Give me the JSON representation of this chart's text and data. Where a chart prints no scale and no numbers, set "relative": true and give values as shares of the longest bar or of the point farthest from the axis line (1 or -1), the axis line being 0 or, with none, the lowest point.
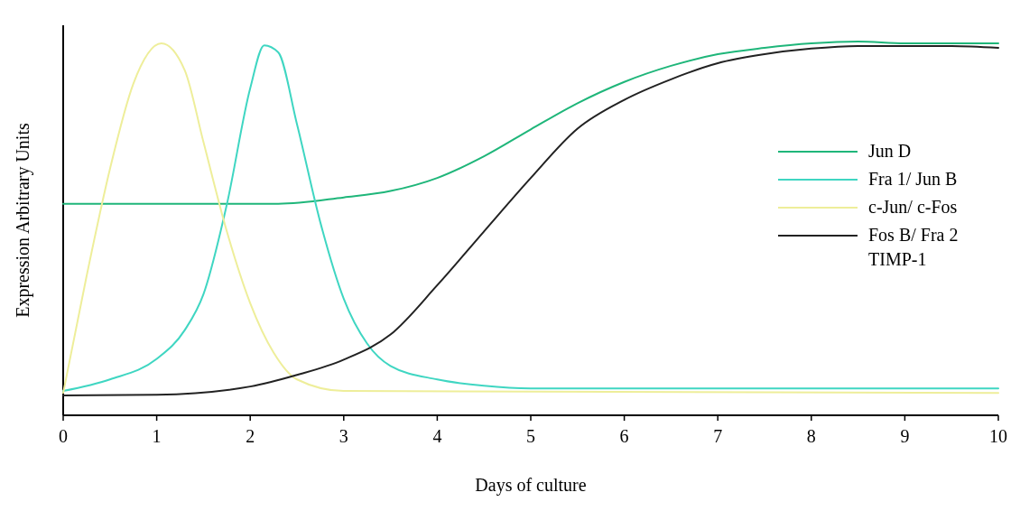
{
  "chart_data": {
    "type": "line",
    "relative": true,
    "xlabel": "Days of  culture",
    "ylabel": "Expression Arbitrary Units",
    "xlim": [
      0,
      10
    ],
    "xticks": [
      0,
      1,
      2,
      3,
      4,
      5,
      6,
      7,
      8,
      9,
      10
    ],
    "legend": "right",
    "grid": false,
    "annotations": [
      "TIMP-1"
    ],
    "series": [
      {
        "name": "Jun D",
        "color": "#1fb67a",
        "x": [
          0,
          1,
          2,
          2.3,
          3,
          3.5,
          4,
          4.5,
          5,
          5.5,
          6,
          6.5,
          7,
          7.5,
          8,
          8.5,
          9,
          10
        ],
        "values": [
          0.566,
          0.566,
          0.566,
          0.566,
          0.583,
          0.6,
          0.635,
          0.693,
          0.765,
          0.835,
          0.892,
          0.935,
          0.966,
          0.983,
          0.995,
          1.0,
          0.995,
          0.995
        ]
      },
      {
        "name": "Fra 1/ Jun B",
        "color": "#3fd6c2",
        "x": [
          0,
          0.5,
          1,
          1.3,
          1.5,
          1.75,
          2,
          2.15,
          2.3,
          2.5,
          2.75,
          3,
          3.25,
          3.5,
          4,
          4.5,
          5,
          10
        ],
        "values": [
          0.065,
          0.096,
          0.151,
          0.228,
          0.324,
          0.564,
          0.875,
          0.99,
          0.971,
          0.779,
          0.516,
          0.312,
          0.192,
          0.132,
          0.096,
          0.079,
          0.072,
          0.072
        ]
      },
      {
        "name": "c-Jun/ c-Fos",
        "color": "#eeee9a",
        "x": [
          0,
          0.25,
          0.5,
          0.75,
          1.05,
          1.3,
          1.5,
          1.75,
          2,
          2.25,
          2.5,
          3,
          10
        ],
        "values": [
          0.06,
          0.372,
          0.659,
          0.887,
          0.995,
          0.923,
          0.731,
          0.492,
          0.3,
          0.168,
          0.096,
          0.065,
          0.06
        ]
      },
      {
        "name": "Fos B/ Fra 2",
        "color": "#222222",
        "x": [
          0,
          1,
          2,
          2.5,
          3,
          3.5,
          4,
          4.5,
          5,
          5.5,
          6,
          6.5,
          7,
          7.5,
          8,
          8.5,
          9.5,
          10
        ],
        "values": [
          0.053,
          0.055,
          0.077,
          0.108,
          0.149,
          0.216,
          0.348,
          0.492,
          0.635,
          0.767,
          0.844,
          0.899,
          0.942,
          0.966,
          0.981,
          0.988,
          0.988,
          0.983
        ]
      }
    ]
  }
}
